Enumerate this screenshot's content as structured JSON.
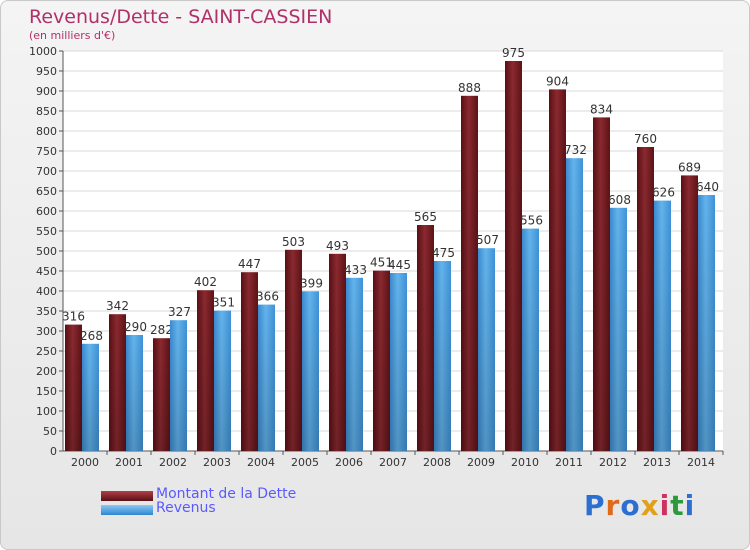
{
  "title": "Revenus/Dette - SAINT-CASSIEN",
  "subtitle": "(en milliers d'€)",
  "colors": {
    "debt": "#7a1a1e",
    "revenue": "#4a9ee0",
    "title": "#b0306a",
    "legend_text": "#5a5aff"
  },
  "legend": [
    {
      "label": "Montant de la Dette",
      "color": "#7a1a1e"
    },
    {
      "label": "Revenus",
      "color": "#4a9ee0"
    }
  ],
  "logo": {
    "text": "Proxiti"
  },
  "chart_data": {
    "type": "bar",
    "categories": [
      "2000",
      "2001",
      "2002",
      "2003",
      "2004",
      "2005",
      "2006",
      "2007",
      "2008",
      "2009",
      "2010",
      "2011",
      "2012",
      "2013",
      "2014"
    ],
    "series": [
      {
        "name": "Montant de la Dette",
        "values": [
          316,
          342,
          282,
          402,
          447,
          503,
          493,
          451,
          565,
          888,
          975,
          904,
          834,
          760,
          689
        ]
      },
      {
        "name": "Revenus",
        "values": [
          268,
          290,
          327,
          351,
          366,
          399,
          433,
          445,
          475,
          507,
          556,
          732,
          608,
          626,
          640
        ]
      }
    ],
    "ylim": [
      0,
      1000
    ],
    "yticks": [
      0,
      50,
      100,
      150,
      200,
      250,
      300,
      350,
      400,
      450,
      500,
      550,
      600,
      650,
      700,
      750,
      800,
      850,
      900,
      950,
      1000
    ],
    "grid": true,
    "legend_position": "bottom-left"
  }
}
